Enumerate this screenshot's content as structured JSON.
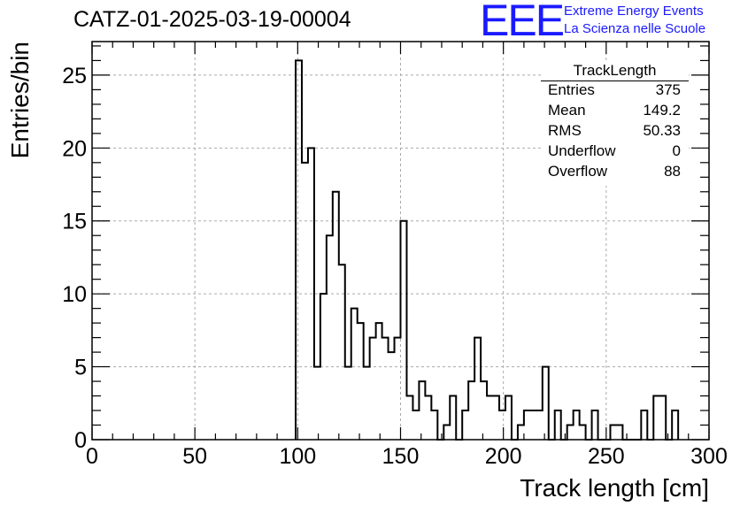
{
  "title": "CATZ-01-2025-03-19-00004",
  "logo": {
    "mark": "EEE",
    "line1": "Extreme Energy Events",
    "line2": "La Scienza nelle Scuole",
    "color": "#1a1aff"
  },
  "stats": {
    "name": "TrackLength",
    "rows": [
      {
        "key": "Entries",
        "value": "375"
      },
      {
        "key": "Mean",
        "value": "149.2"
      },
      {
        "key": "RMS",
        "value": "50.33"
      },
      {
        "key": "Underflow",
        "value": "0"
      },
      {
        "key": "Overflow",
        "value": "88"
      }
    ]
  },
  "chart_data": {
    "type": "bar",
    "style": "step-histogram",
    "xlabel": "Track length [cm]",
    "ylabel": "Entries/bin",
    "xlim": [
      0,
      300
    ],
    "ylim": [
      0,
      27.3
    ],
    "xticks": [
      0,
      50,
      100,
      150,
      200,
      250,
      300
    ],
    "yticks": [
      0,
      5,
      10,
      15,
      20,
      25
    ],
    "grid": true,
    "bin_width": 3,
    "bin_start": 99,
    "values": [
      26,
      19,
      20,
      5,
      10,
      14,
      17,
      12,
      5,
      9,
      8,
      5,
      7,
      8,
      7,
      6,
      7,
      15,
      3,
      2,
      4,
      3,
      2,
      0,
      1,
      3,
      0,
      2,
      4,
      7,
      4,
      3,
      3,
      2,
      3,
      0,
      1,
      2,
      2,
      2,
      5,
      0,
      2,
      0,
      1,
      2,
      1,
      0,
      2,
      0,
      0,
      1,
      1,
      0,
      0,
      0,
      2,
      0,
      3,
      3,
      0,
      2
    ],
    "line_color": "#000000",
    "grid_color": "#aaaaaa"
  }
}
